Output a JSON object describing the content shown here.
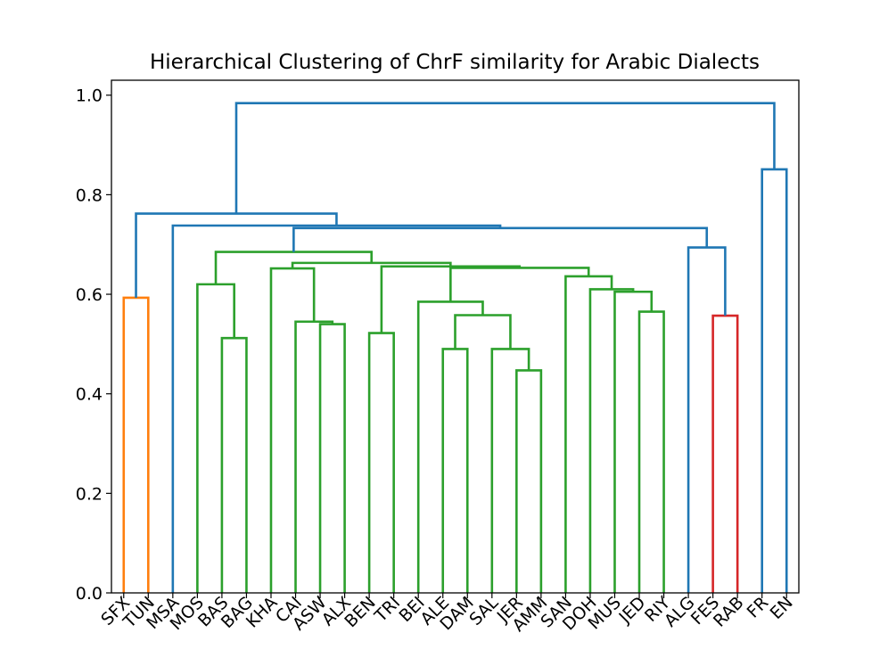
{
  "chart_data": {
    "type": "dendrogram",
    "title": "Hierarchical Clustering of ChrF similarity for Arabic Dialects",
    "xlabel": "",
    "ylabel": "",
    "ylim": [
      0,
      1.03
    ],
    "yticks": [
      0.0,
      0.2,
      0.4,
      0.6,
      0.8,
      1.0
    ],
    "ytick_labels": [
      "0.0",
      "0.2",
      "0.4",
      "0.6",
      "0.8",
      "1.0"
    ],
    "leaves": [
      "SFX",
      "TUN",
      "MSA",
      "MOS",
      "BAS",
      "BAG",
      "KHA",
      "CAI",
      "ASW",
      "ALX",
      "BEN",
      "TRI",
      "BEI",
      "ALE",
      "DAM",
      "SAL",
      "JER",
      "AMM",
      "SAN",
      "DOH",
      "MUS",
      "JED",
      "RIY",
      "ALG",
      "FES",
      "RAB",
      "FR",
      "EN"
    ],
    "colors": {
      "orange": "#ff7f0e",
      "green": "#2ca02c",
      "red": "#d62728",
      "blue": "#1f77b4"
    },
    "merges": [
      {
        "a": 0,
        "b": 1,
        "h": 0.593,
        "color": "#ff7f0e"
      },
      {
        "a": 4,
        "b": 5,
        "h": 0.512,
        "color": "#2ca02c"
      },
      {
        "a": 3,
        "b": 29,
        "h": 0.62,
        "color": "#2ca02c"
      },
      {
        "a": 10,
        "b": 11,
        "h": 0.522,
        "color": "#2ca02c"
      },
      {
        "a": 8,
        "b": 9,
        "h": 0.54,
        "color": "#2ca02c"
      },
      {
        "a": 7,
        "b": 32,
        "h": 0.545,
        "color": "#2ca02c"
      },
      {
        "a": 6,
        "b": 33,
        "h": 0.652,
        "color": "#2ca02c"
      },
      {
        "a": 16,
        "b": 17,
        "h": 0.447,
        "color": "#2ca02c"
      },
      {
        "a": 15,
        "b": 35,
        "h": 0.49,
        "color": "#2ca02c"
      },
      {
        "a": 13,
        "b": 14,
        "h": 0.49,
        "color": "#2ca02c"
      },
      {
        "a": 37,
        "b": 36,
        "h": 0.558,
        "color": "#2ca02c"
      },
      {
        "a": 12,
        "b": 38,
        "h": 0.585,
        "color": "#2ca02c"
      },
      {
        "a": 21,
        "b": 22,
        "h": 0.565,
        "color": "#2ca02c"
      },
      {
        "a": 20,
        "b": 40,
        "h": 0.605,
        "color": "#2ca02c"
      },
      {
        "a": 19,
        "b": 41,
        "h": 0.61,
        "color": "#2ca02c"
      },
      {
        "a": 18,
        "b": 42,
        "h": 0.636,
        "color": "#2ca02c"
      },
      {
        "a": 39,
        "b": 43,
        "h": 0.653,
        "color": "#2ca02c"
      },
      {
        "a": 31,
        "b": 44,
        "h": 0.656,
        "color": "#2ca02c"
      },
      {
        "a": 34,
        "b": 45,
        "h": 0.663,
        "color": "#2ca02c"
      },
      {
        "a": 30,
        "b": 46,
        "h": 0.685,
        "color": "#2ca02c"
      },
      {
        "a": 24,
        "b": 25,
        "h": 0.557,
        "color": "#d62728"
      },
      {
        "a": 23,
        "b": 48,
        "h": 0.694,
        "color": "#1f77b4"
      },
      {
        "a": 47,
        "b": 49,
        "h": 0.733,
        "color": "#1f77b4"
      },
      {
        "a": 2,
        "b": 50,
        "h": 0.738,
        "color": "#1f77b4"
      },
      {
        "a": 28,
        "b": 51,
        "h": 0.762,
        "color": "#1f77b4"
      },
      {
        "a": 26,
        "b": 27,
        "h": 0.851,
        "color": "#1f77b4"
      },
      {
        "a": 52,
        "b": 53,
        "h": 0.984,
        "color": "#1f77b4"
      }
    ]
  }
}
